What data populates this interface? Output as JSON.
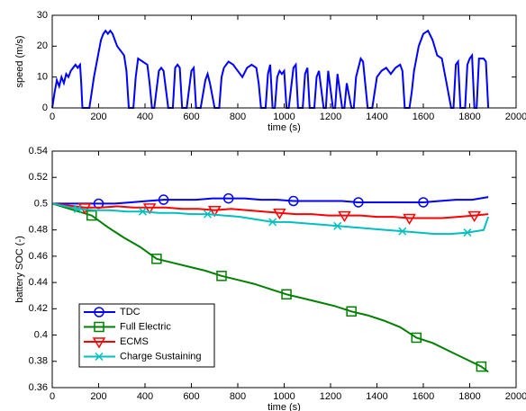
{
  "chart_data": [
    {
      "type": "line",
      "xlabel": "time (s)",
      "ylabel": "speed (m/s)",
      "color": "#0000ff",
      "xlim": [
        0,
        2000
      ],
      "xticks": [
        0,
        200,
        400,
        600,
        800,
        1000,
        1200,
        1400,
        1600,
        1800,
        2000
      ],
      "ylim": [
        0,
        30
      ],
      "yticks": [
        0,
        10,
        20,
        30
      ],
      "x": [
        0,
        10,
        20,
        30,
        40,
        50,
        60,
        70,
        80,
        90,
        100,
        110,
        120,
        125,
        130,
        160,
        170,
        180,
        190,
        200,
        210,
        220,
        230,
        240,
        250,
        260,
        270,
        280,
        290,
        300,
        310,
        320,
        330,
        350,
        360,
        370,
        390,
        410,
        420,
        430,
        440,
        460,
        470,
        480,
        500,
        520,
        530,
        540,
        550,
        560,
        580,
        600,
        610,
        620,
        640,
        660,
        670,
        680,
        700,
        720,
        730,
        740,
        760,
        780,
        790,
        800,
        820,
        840,
        860,
        880,
        890,
        900,
        920,
        930,
        940,
        950,
        960,
        970,
        980,
        990,
        1000,
        1010,
        1020,
        1040,
        1050,
        1060,
        1080,
        1090,
        1100,
        1110,
        1130,
        1140,
        1150,
        1170,
        1180,
        1190,
        1210,
        1220,
        1230,
        1250,
        1260,
        1270,
        1290,
        1300,
        1310,
        1330,
        1340,
        1360,
        1380,
        1400,
        1420,
        1440,
        1460,
        1480,
        1500,
        1510,
        1520,
        1540,
        1550,
        1560,
        1580,
        1600,
        1620,
        1640,
        1660,
        1680,
        1700,
        1720,
        1730,
        1740,
        1750,
        1760,
        1780,
        1790,
        1800,
        1810,
        1820,
        1830,
        1840,
        1860,
        1870,
        1880
      ],
      "values": [
        0,
        5,
        9,
        7,
        10,
        8,
        11,
        10,
        12,
        13,
        14,
        13,
        14,
        8,
        0,
        0,
        5,
        10,
        14,
        18,
        22,
        24,
        25,
        24,
        25,
        24,
        22,
        20,
        19,
        18,
        17,
        12,
        0,
        0,
        10,
        16,
        15,
        14,
        8,
        0,
        0,
        12,
        13,
        12,
        0,
        0,
        13,
        14,
        13,
        0,
        0,
        12,
        13,
        0,
        0,
        9,
        11,
        8,
        0,
        0,
        10,
        13,
        15,
        14,
        13,
        12,
        10,
        13,
        14,
        13,
        8,
        0,
        0,
        11,
        14,
        0,
        0,
        10,
        12,
        11,
        12,
        0,
        0,
        13,
        14,
        0,
        0,
        11,
        13,
        0,
        0,
        10,
        12,
        0,
        0,
        12,
        0,
        0,
        11,
        0,
        0,
        8,
        0,
        0,
        10,
        16,
        15,
        0,
        0,
        10,
        12,
        13,
        11,
        13,
        14,
        12,
        0,
        0,
        5,
        12,
        20,
        24,
        25,
        22,
        17,
        16,
        8,
        0,
        0,
        14,
        15,
        0,
        0,
        14,
        16,
        17,
        0,
        0,
        16,
        16,
        15,
        0
      ]
    },
    {
      "type": "line",
      "xlabel": "time (s)",
      "ylabel": "battery SOC (-)",
      "legend": "lower left",
      "markevery": 4,
      "xlim": [
        0,
        2000
      ],
      "xticks": [
        0,
        200,
        400,
        600,
        800,
        1000,
        1200,
        1400,
        1600,
        1800,
        2000
      ],
      "ylim": [
        0.36,
        0.54
      ],
      "yticks": [
        0.36,
        0.38,
        0.4,
        0.42,
        0.44,
        0.46,
        0.48,
        0.5,
        0.52,
        0.54
      ],
      "series": [
        {
          "name": "TDC",
          "color": "#0000ff",
          "marker": "circle",
          "x": [
            0,
            200,
            270,
            340,
            410,
            480,
            550,
            620,
            690,
            760,
            830,
            900,
            970,
            1040,
            1110,
            1180,
            1250,
            1320,
            1390,
            1460,
            1530,
            1600,
            1670,
            1740,
            1810,
            1880
          ],
          "values": [
            0.5,
            0.5,
            0.5,
            0.501,
            0.502,
            0.503,
            0.503,
            0.503,
            0.504,
            0.504,
            0.504,
            0.503,
            0.503,
            0.502,
            0.502,
            0.502,
            0.502,
            0.501,
            0.501,
            0.501,
            0.501,
            0.501,
            0.502,
            0.503,
            0.503,
            0.505
          ]
        },
        {
          "name": "Full Electric",
          "color": "#008000",
          "marker": "square",
          "x": [
            0,
            170,
            240,
            310,
            380,
            450,
            520,
            590,
            660,
            730,
            800,
            870,
            940,
            1010,
            1080,
            1150,
            1220,
            1290,
            1360,
            1430,
            1500,
            1570,
            1640,
            1710,
            1780,
            1850,
            1880
          ],
          "values": [
            0.5,
            0.491,
            0.482,
            0.474,
            0.467,
            0.458,
            0.455,
            0.452,
            0.449,
            0.445,
            0.442,
            0.439,
            0.435,
            0.431,
            0.428,
            0.425,
            0.422,
            0.418,
            0.415,
            0.411,
            0.406,
            0.398,
            0.394,
            0.388,
            0.382,
            0.376,
            0.372
          ]
        },
        {
          "name": "ECMS",
          "color": "#ff0000",
          "marker": "triangle",
          "x": [
            0,
            140,
            210,
            280,
            350,
            420,
            490,
            560,
            630,
            700,
            770,
            840,
            910,
            980,
            1050,
            1120,
            1190,
            1260,
            1330,
            1400,
            1470,
            1540,
            1610,
            1680,
            1750,
            1820,
            1880
          ],
          "values": [
            0.5,
            0.497,
            0.497,
            0.498,
            0.497,
            0.497,
            0.497,
            0.496,
            0.496,
            0.495,
            0.496,
            0.495,
            0.494,
            0.493,
            0.492,
            0.492,
            0.491,
            0.491,
            0.491,
            0.49,
            0.49,
            0.489,
            0.489,
            0.489,
            0.49,
            0.491,
            0.492
          ]
        },
        {
          "name": "Charge Sustaining",
          "color": "#00bfbf",
          "marker": "x",
          "x": [
            0,
            110,
            180,
            250,
            320,
            390,
            460,
            530,
            600,
            670,
            740,
            810,
            880,
            950,
            1020,
            1090,
            1160,
            1230,
            1300,
            1370,
            1440,
            1510,
            1580,
            1650,
            1720,
            1790,
            1860,
            1880
          ],
          "values": [
            0.5,
            0.496,
            0.495,
            0.495,
            0.494,
            0.494,
            0.493,
            0.493,
            0.492,
            0.492,
            0.491,
            0.49,
            0.488,
            0.486,
            0.486,
            0.485,
            0.484,
            0.483,
            0.482,
            0.481,
            0.48,
            0.479,
            0.478,
            0.477,
            0.477,
            0.478,
            0.48,
            0.49
          ]
        }
      ]
    }
  ]
}
